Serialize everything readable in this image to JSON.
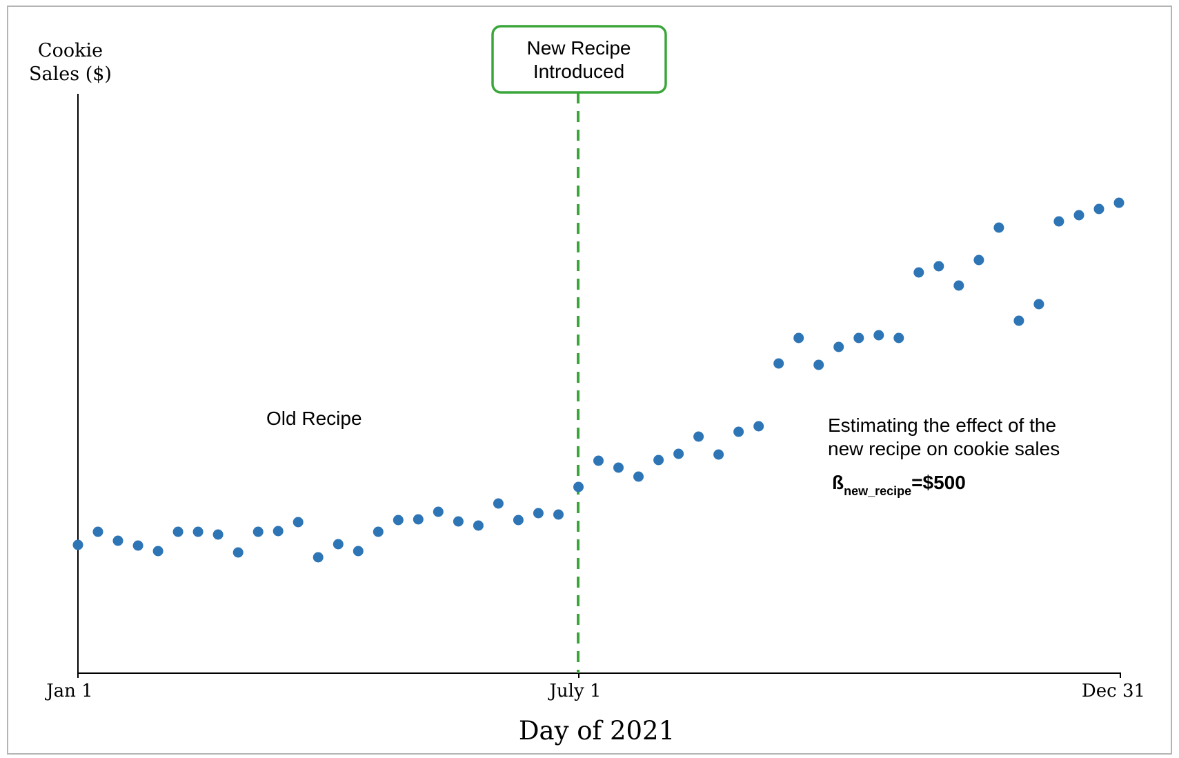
{
  "chart_data": {
    "type": "scatter",
    "ylabel_line1": "Cookie",
    "ylabel_line2": "Sales ($)",
    "xlabel": "Day of 2021",
    "x_ticks": [
      "Jan 1",
      "July 1",
      "Dec 31"
    ],
    "marker_color": "#2e75b6",
    "intervention_color": "#3aa63a",
    "intervention": {
      "line1": "New Recipe",
      "line2": "Introduced"
    },
    "annotations": {
      "old_recipe": "Old Recipe",
      "effect_line1": "Estimating the effect of the",
      "effect_line2": "new recipe on cookie sales",
      "beta_symbol": "ß",
      "beta_subscript": "new_recipe",
      "beta_value": "=$500"
    },
    "points": [
      {
        "x": 0,
        "y": 186
      },
      {
        "x": 7,
        "y": 205
      },
      {
        "x": 14,
        "y": 192
      },
      {
        "x": 21,
        "y": 185
      },
      {
        "x": 28,
        "y": 177
      },
      {
        "x": 35,
        "y": 205
      },
      {
        "x": 42,
        "y": 205
      },
      {
        "x": 49,
        "y": 201
      },
      {
        "x": 56,
        "y": 175
      },
      {
        "x": 63,
        "y": 205
      },
      {
        "x": 70,
        "y": 206
      },
      {
        "x": 77,
        "y": 219
      },
      {
        "x": 84,
        "y": 168
      },
      {
        "x": 91,
        "y": 187
      },
      {
        "x": 98,
        "y": 177
      },
      {
        "x": 105,
        "y": 205
      },
      {
        "x": 112,
        "y": 222
      },
      {
        "x": 119,
        "y": 223
      },
      {
        "x": 126,
        "y": 234
      },
      {
        "x": 133,
        "y": 220
      },
      {
        "x": 140,
        "y": 214
      },
      {
        "x": 147,
        "y": 246
      },
      {
        "x": 154,
        "y": 222
      },
      {
        "x": 161,
        "y": 232
      },
      {
        "x": 168,
        "y": 230
      },
      {
        "x": 175,
        "y": 270
      },
      {
        "x": 182,
        "y": 308
      },
      {
        "x": 189,
        "y": 298
      },
      {
        "x": 196,
        "y": 285
      },
      {
        "x": 203,
        "y": 309
      },
      {
        "x": 210,
        "y": 318
      },
      {
        "x": 217,
        "y": 343
      },
      {
        "x": 224,
        "y": 317
      },
      {
        "x": 231,
        "y": 350
      },
      {
        "x": 238,
        "y": 358
      },
      {
        "x": 245,
        "y": 449
      },
      {
        "x": 252,
        "y": 486
      },
      {
        "x": 259,
        "y": 447
      },
      {
        "x": 266,
        "y": 473
      },
      {
        "x": 273,
        "y": 486
      },
      {
        "x": 280,
        "y": 490
      },
      {
        "x": 287,
        "y": 486
      },
      {
        "x": 294,
        "y": 581
      },
      {
        "x": 301,
        "y": 590
      },
      {
        "x": 308,
        "y": 562
      },
      {
        "x": 315,
        "y": 599
      },
      {
        "x": 322,
        "y": 646
      },
      {
        "x": 329,
        "y": 511
      },
      {
        "x": 336,
        "y": 535
      },
      {
        "x": 343,
        "y": 655
      },
      {
        "x": 350,
        "y": 664
      },
      {
        "x": 357,
        "y": 673
      },
      {
        "x": 364,
        "y": 682
      }
    ]
  }
}
